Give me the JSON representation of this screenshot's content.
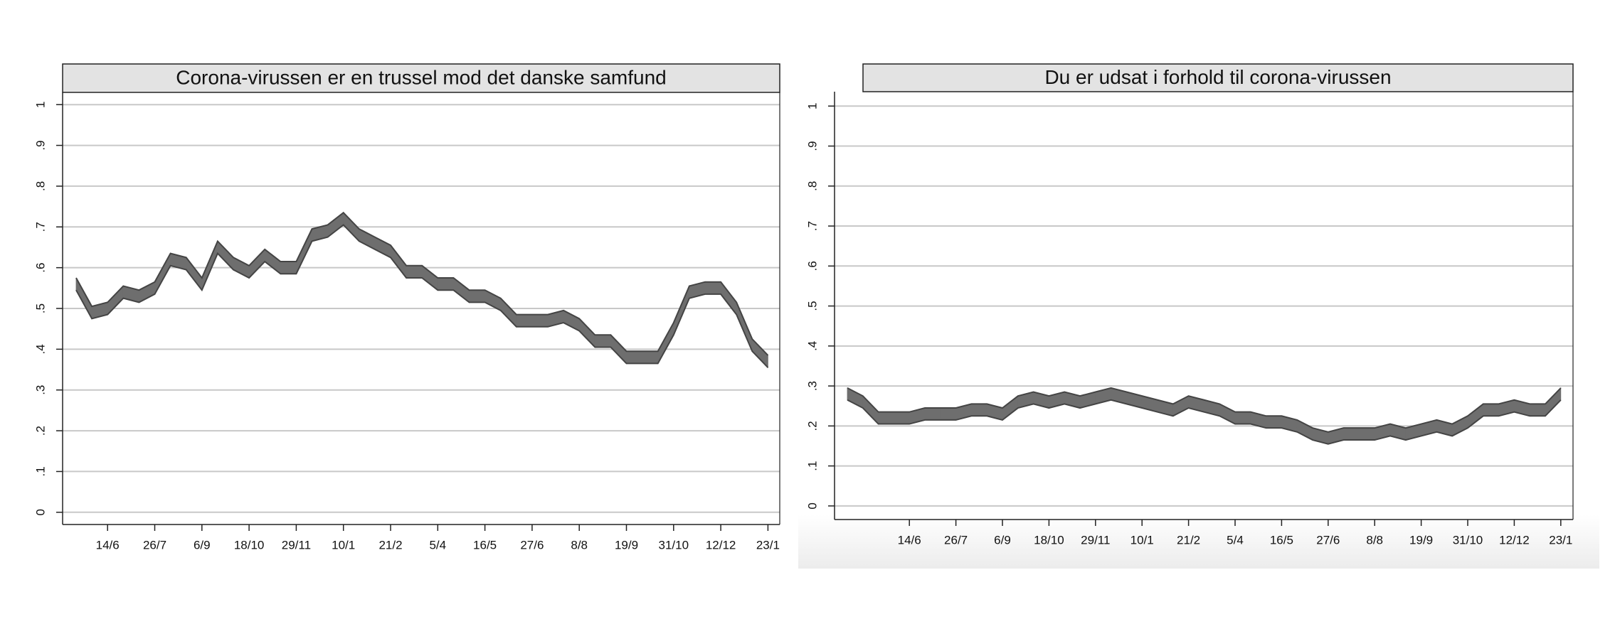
{
  "chart_data": [
    {
      "type": "area",
      "title": "Corona-virussen er en trussel mod det danske samfund",
      "categories": [
        null,
        null,
        "14/6",
        null,
        null,
        "26/7",
        null,
        null,
        "6/9",
        null,
        null,
        "18/10",
        null,
        null,
        "29/11",
        null,
        null,
        "10/1",
        null,
        null,
        "21/2",
        null,
        null,
        "5/4",
        null,
        null,
        "16/5",
        null,
        null,
        "27/6",
        null,
        null,
        "8/8",
        null,
        null,
        "19/9",
        null,
        null,
        "31/10",
        null,
        null,
        "12/12",
        null,
        null,
        "23/1"
      ],
      "series": [
        {
          "color": "#444444",
          "values": [
            0.575,
            0.505,
            0.515,
            0.555,
            0.545,
            0.565,
            0.635,
            0.625,
            0.575,
            0.665,
            0.625,
            0.605,
            0.645,
            0.615,
            0.615,
            0.695,
            0.705,
            0.735,
            0.695,
            0.675,
            0.655,
            0.605,
            0.605,
            0.575,
            0.575,
            0.545,
            0.545,
            0.525,
            0.485,
            0.485,
            0.485,
            0.495,
            0.475,
            0.435,
            0.435,
            0.395,
            0.395,
            0.395,
            0.465,
            0.555,
            0.565,
            0.565,
            0.515,
            0.425,
            0.385
          ]
        },
        {
          "color": "#444444",
          "values": [
            0.545,
            0.475,
            0.485,
            0.525,
            0.515,
            0.535,
            0.605,
            0.595,
            0.545,
            0.635,
            0.595,
            0.575,
            0.615,
            0.585,
            0.585,
            0.665,
            0.675,
            0.705,
            0.665,
            0.645,
            0.625,
            0.575,
            0.575,
            0.545,
            0.545,
            0.515,
            0.515,
            0.495,
            0.455,
            0.455,
            0.455,
            0.465,
            0.445,
            0.405,
            0.405,
            0.365,
            0.365,
            0.365,
            0.435,
            0.525,
            0.535,
            0.535,
            0.485,
            0.395,
            0.355
          ]
        }
      ],
      "fill": "#6e6e6e",
      "ylim": [
        -0.03,
        1.03
      ],
      "yticks": [
        0,
        {
          "value": 0.1,
          "label": ".1"
        },
        {
          "value": 0.2,
          "label": ".2"
        },
        {
          "value": 0.3,
          "label": ".3"
        },
        {
          "value": 0.4,
          "label": ".4"
        },
        {
          "value": 0.5,
          "label": ".5"
        },
        {
          "value": 0.6,
          "label": ".6"
        },
        {
          "value": 0.7,
          "label": ".7"
        },
        {
          "value": 0.8,
          "label": ".8"
        },
        {
          "value": 0.9,
          "label": ".9"
        },
        1
      ],
      "grid": true
    },
    {
      "type": "area",
      "title": "Du er udsat i forhold til corona-virussen",
      "categories": [
        null,
        null,
        null,
        null,
        "14/6",
        null,
        null,
        "26/7",
        null,
        null,
        "6/9",
        null,
        null,
        "18/10",
        null,
        null,
        "29/11",
        null,
        null,
        "10/1",
        null,
        null,
        "21/2",
        null,
        null,
        "5/4",
        null,
        null,
        "16/5",
        null,
        null,
        "27/6",
        null,
        null,
        "8/8",
        null,
        null,
        "19/9",
        null,
        null,
        "31/10",
        null,
        null,
        "12/12",
        null,
        null,
        "23/1"
      ],
      "series": [
        {
          "color": "#444444",
          "values": [
            0.295,
            0.275,
            0.235,
            0.235,
            0.235,
            0.245,
            0.245,
            0.245,
            0.255,
            0.255,
            0.245,
            0.275,
            0.285,
            0.275,
            0.285,
            0.275,
            0.285,
            0.295,
            0.285,
            0.275,
            0.265,
            0.255,
            0.275,
            0.265,
            0.255,
            0.235,
            0.235,
            0.225,
            0.225,
            0.215,
            0.195,
            0.185,
            0.195,
            0.195,
            0.195,
            0.205,
            0.195,
            0.205,
            0.215,
            0.205,
            0.225,
            0.255,
            0.255,
            0.265,
            0.255,
            0.255,
            0.295
          ]
        },
        {
          "color": "#444444",
          "values": [
            0.265,
            0.245,
            0.205,
            0.205,
            0.205,
            0.215,
            0.215,
            0.215,
            0.225,
            0.225,
            0.215,
            0.245,
            0.255,
            0.245,
            0.255,
            0.245,
            0.255,
            0.265,
            0.255,
            0.245,
            0.235,
            0.225,
            0.245,
            0.235,
            0.225,
            0.205,
            0.205,
            0.195,
            0.195,
            0.185,
            0.165,
            0.155,
            0.165,
            0.165,
            0.165,
            0.175,
            0.165,
            0.175,
            0.185,
            0.175,
            0.195,
            0.225,
            0.225,
            0.235,
            0.225,
            0.225,
            0.265
          ]
        }
      ],
      "fill": "#6e6e6e",
      "ylim": [
        -0.034,
        1.036
      ],
      "yticks": [
        0,
        {
          "value": 0.1,
          "label": ".1"
        },
        {
          "value": 0.2,
          "label": ".2"
        },
        {
          "value": 0.3,
          "label": ".3"
        },
        {
          "value": 0.4,
          "label": ".4"
        },
        {
          "value": 0.5,
          "label": ".5"
        },
        {
          "value": 0.6,
          "label": ".6"
        },
        {
          "value": 0.7,
          "label": ".7"
        },
        {
          "value": 0.8,
          "label": ".8"
        },
        {
          "value": 0.9,
          "label": ".9"
        },
        1
      ],
      "grid": true
    }
  ]
}
